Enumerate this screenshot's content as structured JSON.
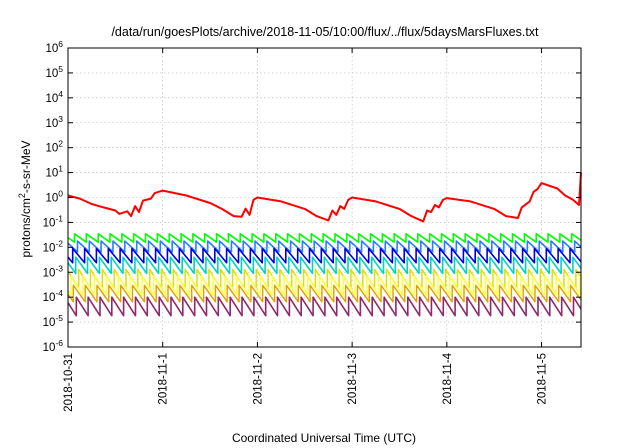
{
  "chart_data": {
    "type": "line",
    "title": "/data/run/goesPlots/archive/2018-11-05/10:00/flux/../flux/5daysMarsFluxes.txt",
    "xlabel": "Coordinated Universal Time (UTC)",
    "ylabel_parts": [
      "protons/cm",
      "2",
      "-s-sr-MeV"
    ],
    "yscale": "log",
    "ylim": [
      1e-06,
      1000000.0
    ],
    "xlim": [
      "2018-10-31T00:00",
      "2018-11-05T10:00"
    ],
    "grid": true,
    "legend": "none",
    "y_ticks": [
      {
        "value": 1e-06,
        "base": "10",
        "exp": "-6"
      },
      {
        "value": 1e-05,
        "base": "10",
        "exp": "-5"
      },
      {
        "value": 0.0001,
        "base": "10",
        "exp": "-4"
      },
      {
        "value": 0.001,
        "base": "10",
        "exp": "-3"
      },
      {
        "value": 0.01,
        "base": "10",
        "exp": "-2"
      },
      {
        "value": 0.1,
        "base": "10",
        "exp": "-1"
      },
      {
        "value": 1,
        "base": "10",
        "exp": "0"
      },
      {
        "value": 10,
        "base": "10",
        "exp": "1"
      },
      {
        "value": 100,
        "base": "10",
        "exp": "2"
      },
      {
        "value": 1000,
        "base": "10",
        "exp": "3"
      },
      {
        "value": 10000,
        "base": "10",
        "exp": "4"
      },
      {
        "value": 100000,
        "base": "10",
        "exp": "5"
      },
      {
        "value": 1000000,
        "base": "10",
        "exp": "6"
      }
    ],
    "x_ticks": [
      {
        "value": "2018-10-31T00:00",
        "label": "2018-10-31"
      },
      {
        "value": "2018-11-01T00:00",
        "label": "2018-11-1"
      },
      {
        "value": "2018-11-02T00:00",
        "label": "2018-11-2"
      },
      {
        "value": "2018-11-03T00:00",
        "label": "2018-11-3"
      },
      {
        "value": "2018-11-04T00:00",
        "label": "2018-11-4"
      },
      {
        "value": "2018-11-05T00:00",
        "label": "2018-11-5"
      }
    ],
    "red_series": {
      "color": "#ff0000",
      "x": [
        "2018-10-31T00:00",
        "2018-10-31T03:00",
        "2018-10-31T06:00",
        "2018-10-31T09:00",
        "2018-10-31T12:00",
        "2018-10-31T13:00",
        "2018-10-31T15:00",
        "2018-10-31T16:00",
        "2018-10-31T17:00",
        "2018-10-31T18:00",
        "2018-10-31T19:00",
        "2018-10-31T21:00",
        "2018-10-31T22:00",
        "2018-11-01T00:00",
        "2018-11-01T06:00",
        "2018-11-01T12:00",
        "2018-11-01T15:00",
        "2018-11-01T18:00",
        "2018-11-01T20:00",
        "2018-11-01T21:00",
        "2018-11-01T22:00",
        "2018-11-01T23:00",
        "2018-11-02T00:00",
        "2018-11-02T06:00",
        "2018-11-02T12:00",
        "2018-11-02T15:00",
        "2018-11-02T18:00",
        "2018-11-02T19:00",
        "2018-11-02T20:00",
        "2018-11-02T21:00",
        "2018-11-02T22:00",
        "2018-11-02T23:00",
        "2018-11-03T00:00",
        "2018-11-03T06:00",
        "2018-11-03T12:00",
        "2018-11-03T15:00",
        "2018-11-03T18:00",
        "2018-11-03T19:00",
        "2018-11-03T20:00",
        "2018-11-03T21:00",
        "2018-11-03T22:00",
        "2018-11-03T23:00",
        "2018-11-04T00:00",
        "2018-11-04T06:00",
        "2018-11-04T12:00",
        "2018-11-04T15:00",
        "2018-11-04T18:00",
        "2018-11-04T19:00",
        "2018-11-04T21:00",
        "2018-11-04T22:00",
        "2018-11-04T23:00",
        "2018-11-05T00:00",
        "2018-11-05T04:00",
        "2018-11-05T06:00",
        "2018-11-05T08:00",
        "2018-11-05T09:30",
        "2018-11-05T10:00"
      ],
      "y": [
        1.2,
        0.9,
        0.55,
        0.4,
        0.3,
        0.22,
        0.28,
        0.18,
        0.45,
        0.26,
        0.75,
        0.9,
        1.5,
        1.9,
        1.2,
        0.6,
        0.35,
        0.18,
        0.17,
        0.36,
        0.2,
        0.8,
        1.0,
        0.7,
        0.35,
        0.18,
        0.12,
        0.3,
        0.2,
        0.45,
        0.35,
        0.8,
        1.0,
        0.7,
        0.35,
        0.18,
        0.11,
        0.3,
        0.26,
        0.5,
        0.4,
        0.8,
        0.95,
        0.7,
        0.35,
        0.18,
        0.15,
        0.4,
        0.7,
        1.7,
        2.2,
        3.8,
        2.3,
        1.2,
        0.8,
        0.5,
        10.0
      ]
    },
    "sawtooth_series": [
      {
        "color": "#00ff00",
        "peak": 0.035,
        "trough": 0.016,
        "phase": 0.45,
        "width": 1.6
      },
      {
        "color": "#2a7fff",
        "peak": 0.018,
        "trough": 0.0065,
        "phase": 0.2,
        "width": 1.6
      },
      {
        "color": "#0000e0",
        "peak": 0.009,
        "trough": 0.0024,
        "phase": 0.6,
        "width": 1.6
      },
      {
        "color": "#00d4c0",
        "peak": 0.004,
        "trough": 0.0009,
        "phase": 0.35,
        "width": 1.6
      },
      {
        "color": "#e0e000",
        "peak": 0.0013,
        "trough": 0.00023,
        "phase": 0.1,
        "width": 1.5
      },
      {
        "color": "#ffff40",
        "peak": 0.0007,
        "trough": 0.00012,
        "phase": 0.75,
        "width": 1.5
      },
      {
        "color": "#e0a000",
        "peak": 0.0003,
        "trough": 6.5e-05,
        "phase": 0.55,
        "width": 1.4
      },
      {
        "color": "#8e2a6a",
        "peak": 0.0001,
        "trough": 1.8e-05,
        "phase": 0.3,
        "width": 1.6
      }
    ],
    "sawtooth_period_hours": 3
  }
}
